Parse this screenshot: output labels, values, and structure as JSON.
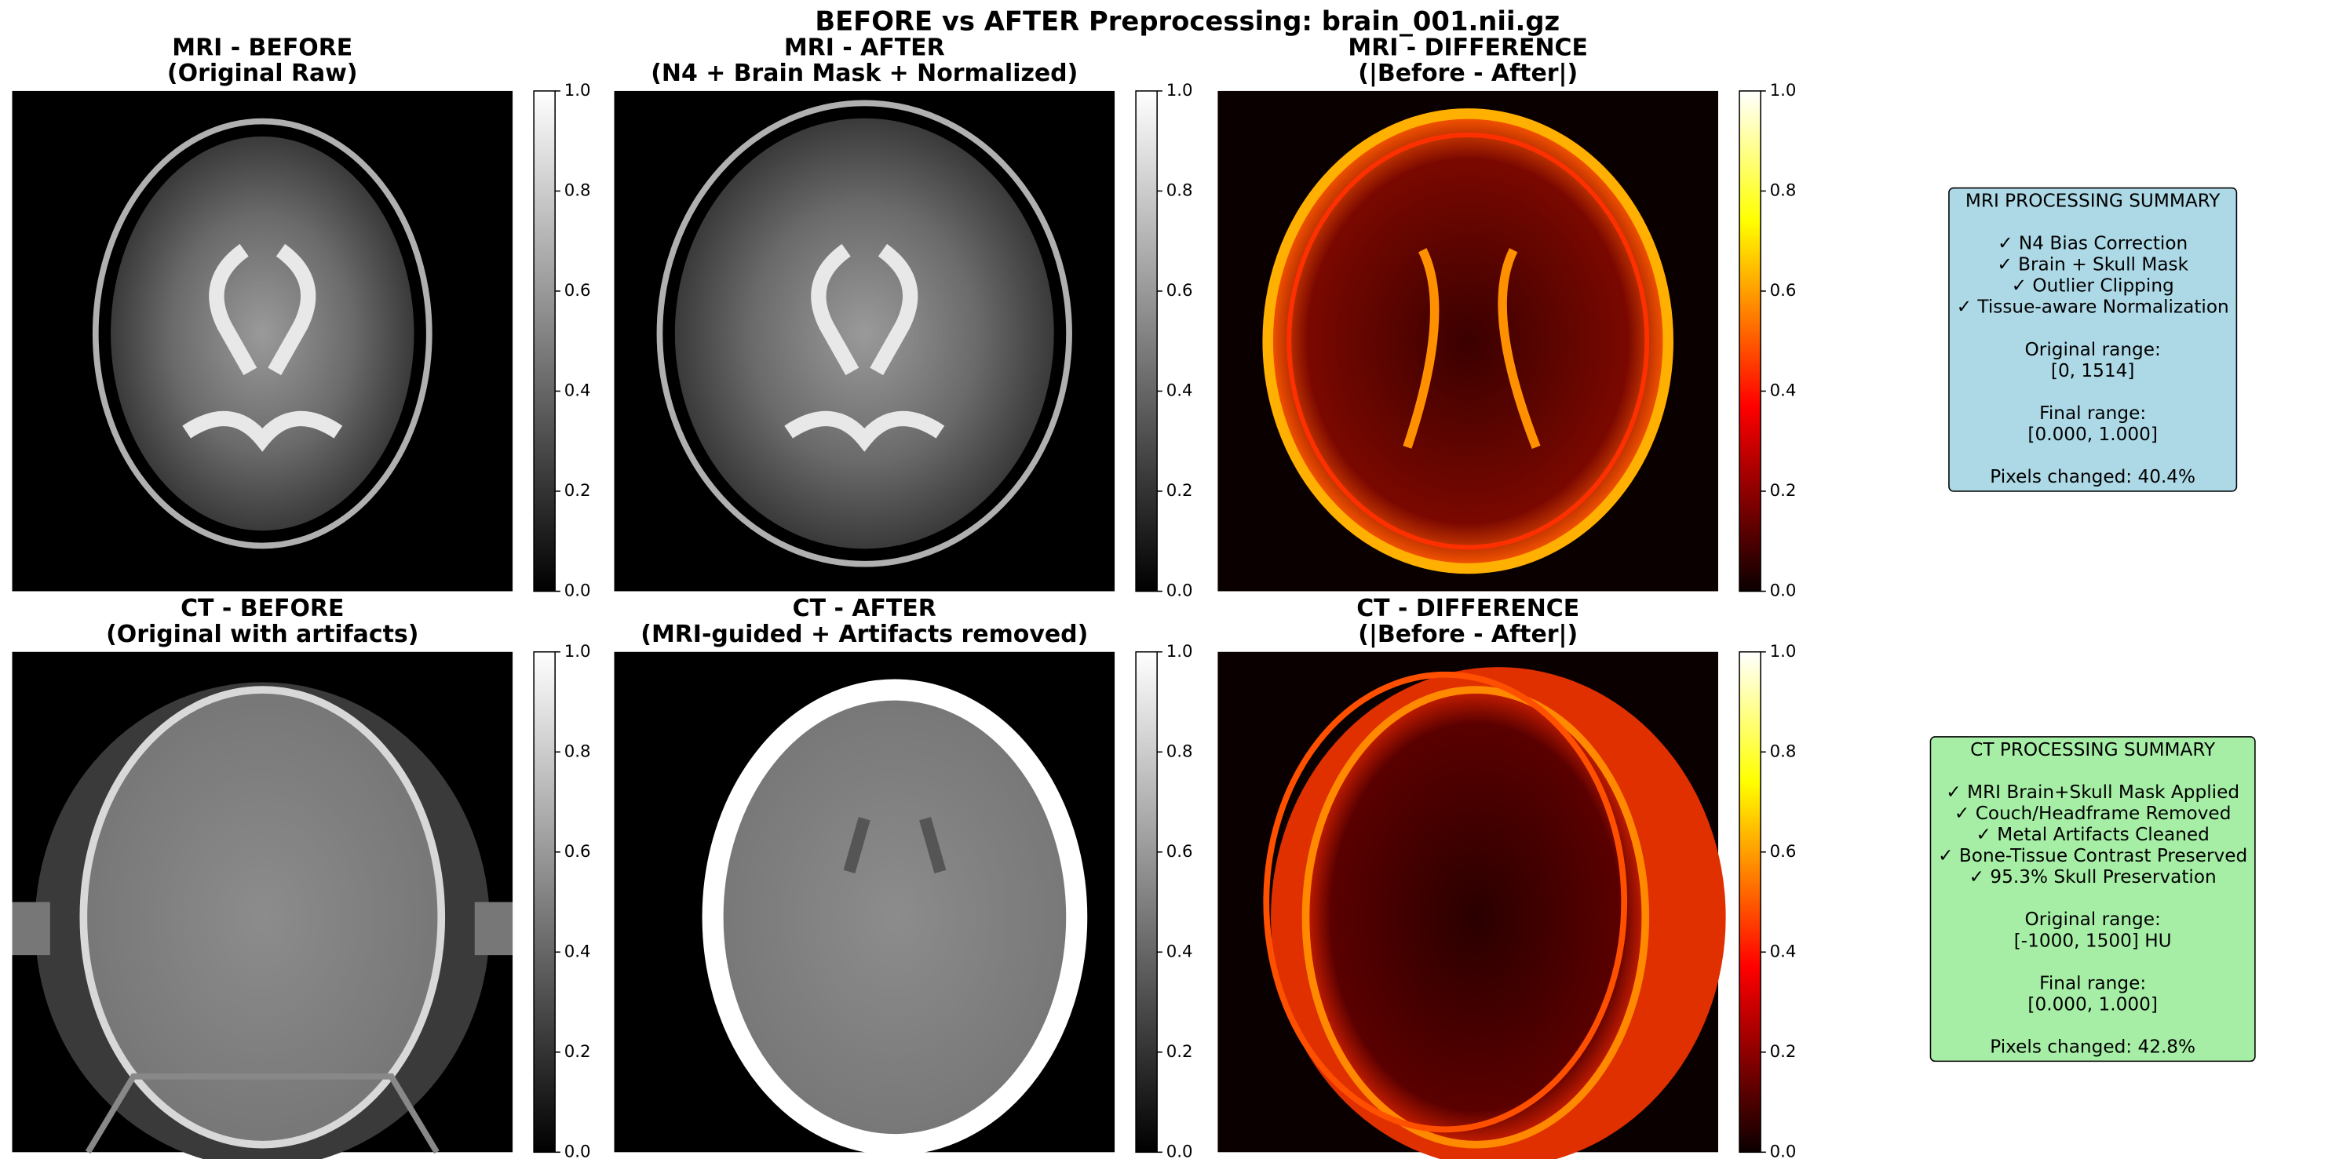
{
  "title": "BEFORE vs AFTER Preprocessing: brain_001.nii.gz",
  "panels": [
    {
      "title": [
        "MRI - BEFORE",
        "(Original Raw)"
      ],
      "colormap": "gray",
      "colorbar": {
        "ylim": [
          0,
          1
        ],
        "yticks": [
          {
            "value": 0,
            "label": "0.0"
          },
          {
            "value": 0.2,
            "label": "0.2"
          },
          {
            "value": 0.4,
            "label": "0.4"
          },
          {
            "value": 0.6,
            "label": "0.6"
          },
          {
            "value": 0.8,
            "label": "0.8"
          },
          {
            "value": 1,
            "label": "1.0"
          }
        ]
      }
    },
    {
      "title": [
        "MRI - AFTER",
        "(N4 + Brain Mask + Normalized)"
      ],
      "colormap": "gray",
      "colorbar": {
        "ylim": [
          0,
          1
        ],
        "yticks": [
          {
            "value": 0,
            "label": "0.0"
          },
          {
            "value": 0.2,
            "label": "0.2"
          },
          {
            "value": 0.4,
            "label": "0.4"
          },
          {
            "value": 0.6,
            "label": "0.6"
          },
          {
            "value": 0.8,
            "label": "0.8"
          },
          {
            "value": 1,
            "label": "1.0"
          }
        ]
      }
    },
    {
      "title": [
        "MRI - DIFFERENCE",
        "(|Before - After|)"
      ],
      "colormap": "hot",
      "colorbar": {
        "ylim": [
          0,
          1
        ],
        "yticks": [
          {
            "value": 0,
            "label": "0.0"
          },
          {
            "value": 0.2,
            "label": "0.2"
          },
          {
            "value": 0.4,
            "label": "0.4"
          },
          {
            "value": 0.6,
            "label": "0.6"
          },
          {
            "value": 0.8,
            "label": "0.8"
          },
          {
            "value": 1,
            "label": "1.0"
          }
        ]
      }
    },
    {
      "title": [
        "CT - BEFORE",
        "(Original with artifacts)"
      ],
      "colormap": "gray",
      "colorbar": {
        "ylim": [
          0,
          1
        ],
        "yticks": [
          {
            "value": 0,
            "label": "0.0"
          },
          {
            "value": 0.2,
            "label": "0.2"
          },
          {
            "value": 0.4,
            "label": "0.4"
          },
          {
            "value": 0.6,
            "label": "0.6"
          },
          {
            "value": 0.8,
            "label": "0.8"
          },
          {
            "value": 1,
            "label": "1.0"
          }
        ]
      }
    },
    {
      "title": [
        "CT - AFTER",
        "(MRI-guided + Artifacts removed)"
      ],
      "colormap": "gray",
      "colorbar": {
        "ylim": [
          0,
          1
        ],
        "yticks": [
          {
            "value": 0,
            "label": "0.0"
          },
          {
            "value": 0.2,
            "label": "0.2"
          },
          {
            "value": 0.4,
            "label": "0.4"
          },
          {
            "value": 0.6,
            "label": "0.6"
          },
          {
            "value": 0.8,
            "label": "0.8"
          },
          {
            "value": 1,
            "label": "1.0"
          }
        ]
      }
    },
    {
      "title": [
        "CT - DIFFERENCE",
        "(|Before - After|)"
      ],
      "colormap": "hot",
      "colorbar": {
        "ylim": [
          0,
          1
        ],
        "yticks": [
          {
            "value": 0,
            "label": "0.0"
          },
          {
            "value": 0.2,
            "label": "0.2"
          },
          {
            "value": 0.4,
            "label": "0.4"
          },
          {
            "value": 0.6,
            "label": "0.6"
          },
          {
            "value": 0.8,
            "label": "0.8"
          },
          {
            "value": 1,
            "label": "1.0"
          }
        ]
      }
    }
  ],
  "summaries": [
    {
      "title": "MRI PROCESSING SUMMARY",
      "color": "#add8e6",
      "checks": [
        "✓ N4 Bias Correction",
        "✓ Brain + Skull Mask",
        "✓ Outlier Clipping",
        "✓ Tissue-aware Normalization"
      ],
      "original_range": [
        "Original range:",
        "[0, 1514]"
      ],
      "final_range": [
        "Final range:",
        "[0.000, 1.000]"
      ],
      "pixels_changed": "Pixels changed: 40.4%"
    },
    {
      "title": "CT PROCESSING SUMMARY",
      "color": "#a6eea6",
      "checks": [
        "✓ MRI Brain+Skull Mask Applied",
        "✓ Couch/Headframe Removed",
        "✓ Metal Artifacts Cleaned",
        "✓ Bone-Tissue Contrast Preserved",
        "✓ 95.3% Skull Preservation"
      ],
      "original_range": [
        "Original range:",
        "[-1000, 1500] HU"
      ],
      "final_range": [
        "Final range:",
        "[0.000, 1.000]"
      ],
      "pixels_changed": "Pixels changed: 42.8%"
    }
  ]
}
